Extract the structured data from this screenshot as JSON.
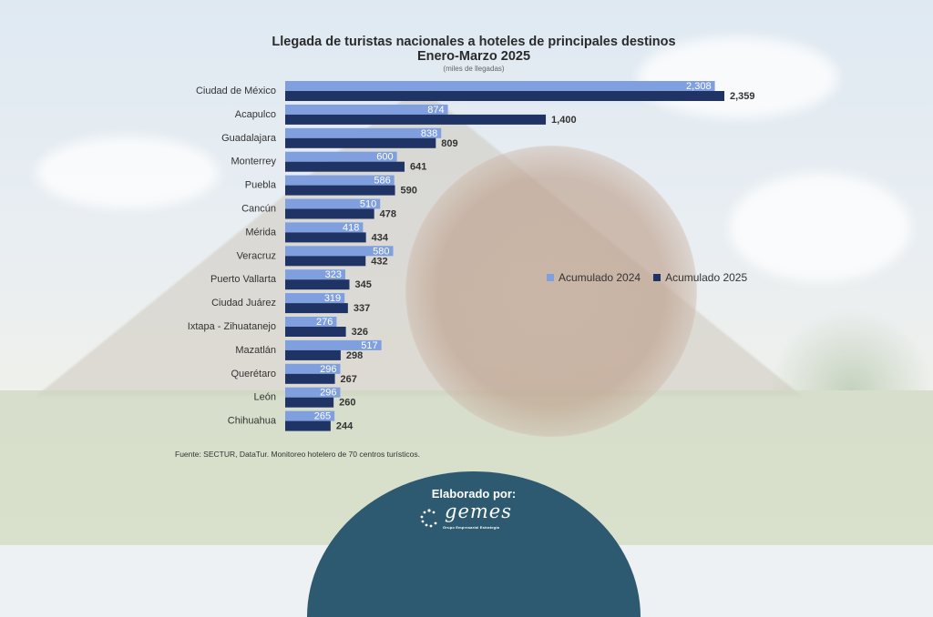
{
  "chart_data": {
    "type": "bar",
    "orientation": "horizontal",
    "title": "Llegada de turistas  nacionales a hoteles de principales destinos",
    "subtitle": "Enero-Marzo  2025",
    "units": "(miles de llegadas)",
    "categories": [
      "Ciudad de México",
      "Acapulco",
      "Guadalajara",
      "Monterrey",
      "Puebla",
      "Cancún",
      "Mérida",
      "Veracruz",
      "Puerto Vallarta",
      "Ciudad Juárez",
      "Ixtapa - Zihuatanejo",
      "Mazatlán",
      "Querétaro",
      "León",
      "Chihuahua"
    ],
    "series": [
      {
        "name": "Acumulado 2024",
        "color": "#7f9fde",
        "values": [
          2308,
          874,
          838,
          600,
          586,
          510,
          418,
          580,
          323,
          319,
          276,
          517,
          296,
          296,
          265
        ],
        "labels": [
          "2,308",
          "874",
          "838",
          "600",
          "586",
          "510",
          "418",
          "580",
          "323",
          "319",
          "276",
          "517",
          "296",
          "296",
          "265"
        ]
      },
      {
        "name": "Acumulado 2025",
        "color": "#1f3464",
        "values": [
          2359,
          1400,
          809,
          641,
          590,
          478,
          434,
          432,
          345,
          337,
          326,
          298,
          267,
          260,
          244
        ],
        "labels": [
          "2,359",
          "1,400",
          "809",
          "641",
          "590",
          "478",
          "434",
          "432",
          "345",
          "337",
          "326",
          "298",
          "267",
          "260",
          "244"
        ]
      }
    ],
    "legend_position": "right",
    "grid": false
  },
  "source": "Fuente: SECTUR, DataTur. Monitoreo hotelero de 70 centros turísticos.",
  "footer": {
    "made_by": "Elaborado por:",
    "logo_text": "gemes",
    "logo_subtitle": "Grupo Empresarial Estrategia"
  }
}
